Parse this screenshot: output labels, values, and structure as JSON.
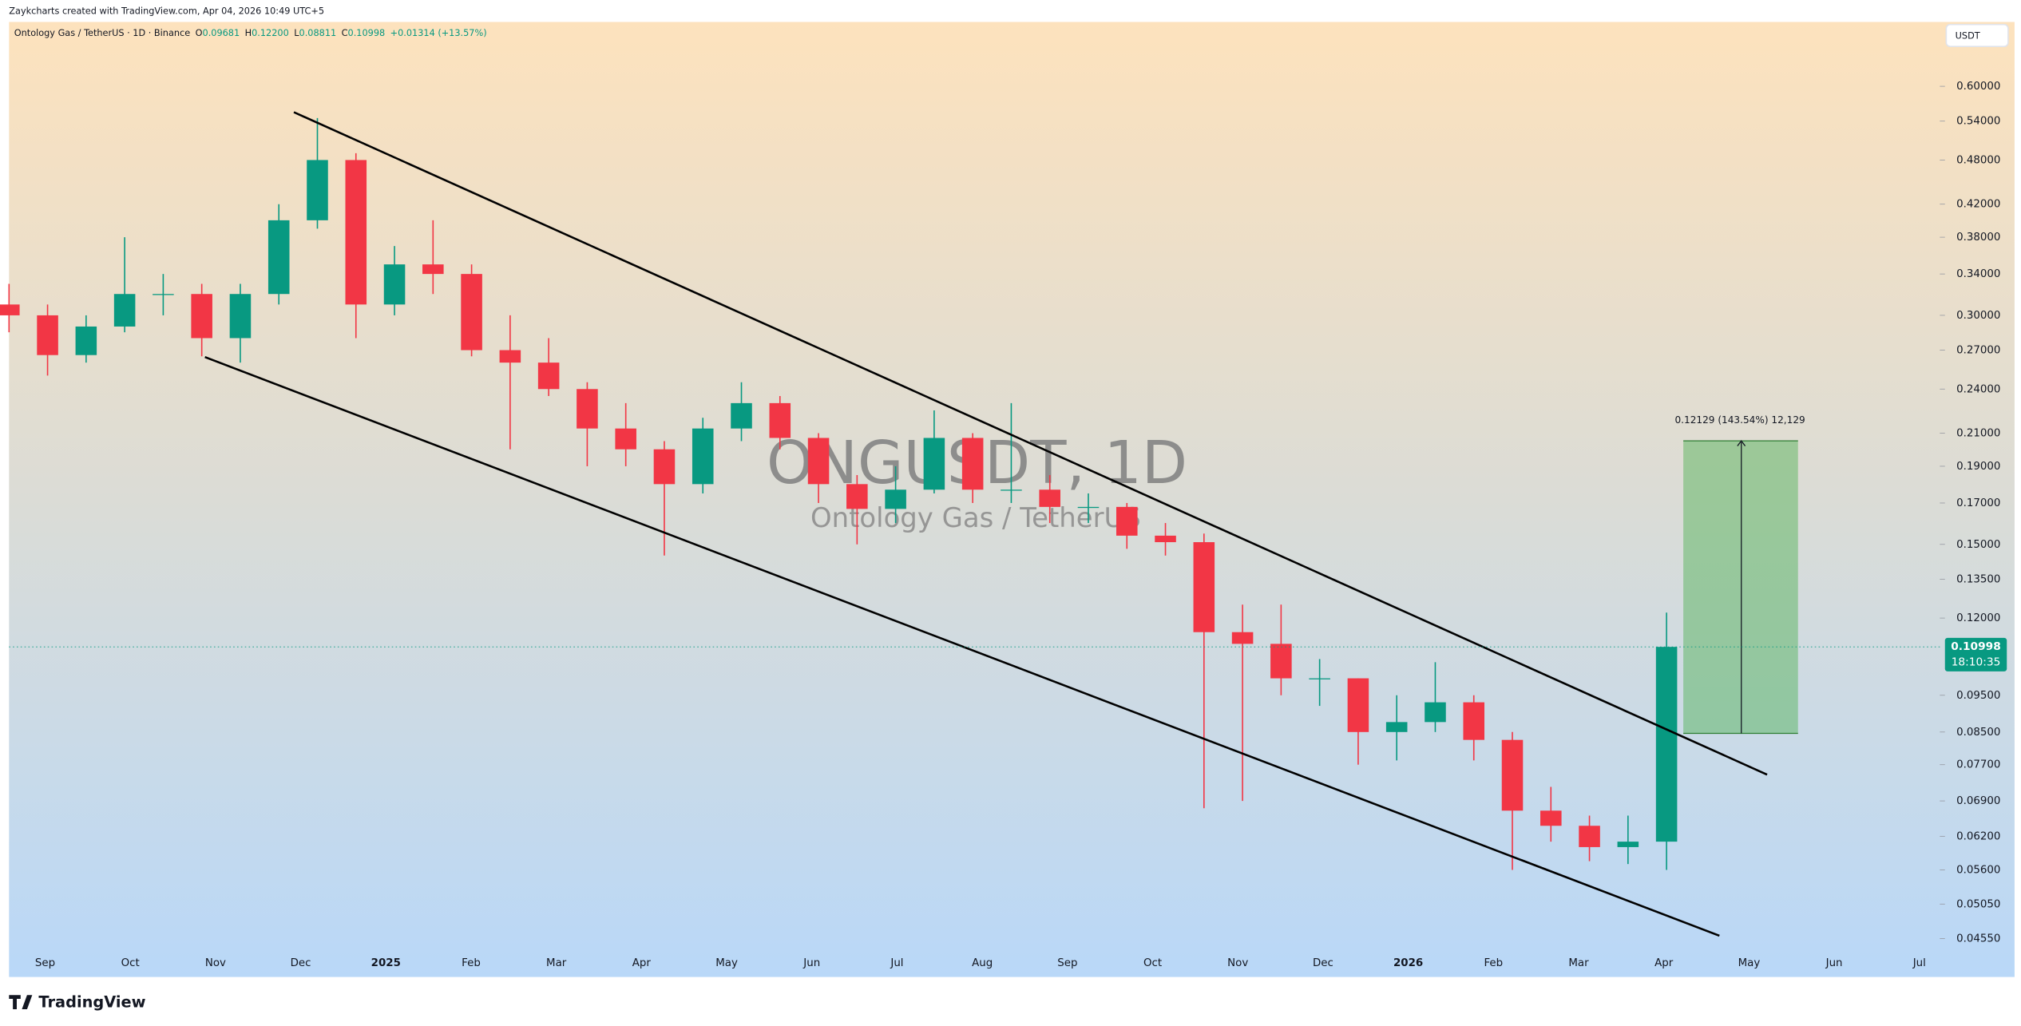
{
  "header": {
    "credit": "Zaykcharts created with TradingView.com, Apr 04, 2026 10:49 UTC+5",
    "symbol": "Ontology Gas / TetherUS · 1D · Binance",
    "ohlc": [
      {
        "key": "O",
        "value": "0.09681"
      },
      {
        "key": "H",
        "value": "0.12200"
      },
      {
        "key": "L",
        "value": "0.08811"
      },
      {
        "key": "C",
        "value": "0.10998"
      }
    ],
    "change": "+0.01314 (+13.57%)"
  },
  "chart_data": {
    "type": "candlestick",
    "currency": "USDT",
    "watermark": {
      "symbol": "ONGUSDT, 1D",
      "name": "Ontology Gas / TetherUS"
    },
    "measure_label": "0.12129 (143.54%) 12,129",
    "last_price_label": "0.10998",
    "countdown": "18:10:35",
    "up_color": "#089981",
    "down_color": "#f23645",
    "log_scale": true,
    "grid": false,
    "ylim": [
      0.0405,
      0.729
    ],
    "yticks": [
      {
        "value": 0.6,
        "label": "0.60000"
      },
      {
        "value": 0.54,
        "label": "0.54000"
      },
      {
        "value": 0.48,
        "label": "0.48000"
      },
      {
        "value": 0.42,
        "label": "0.42000"
      },
      {
        "value": 0.38,
        "label": "0.38000"
      },
      {
        "value": 0.34,
        "label": "0.34000"
      },
      {
        "value": 0.3,
        "label": "0.30000"
      },
      {
        "value": 0.27,
        "label": "0.27000"
      },
      {
        "value": 0.24,
        "label": "0.24000"
      },
      {
        "value": 0.21,
        "label": "0.21000"
      },
      {
        "value": 0.19,
        "label": "0.19000"
      },
      {
        "value": 0.17,
        "label": "0.17000"
      },
      {
        "value": 0.15,
        "label": "0.15000"
      },
      {
        "value": 0.135,
        "label": "0.13500"
      },
      {
        "value": 0.12,
        "label": "0.12000"
      },
      {
        "value": 0.095,
        "label": "0.09500"
      },
      {
        "value": 0.085,
        "label": "0.08500"
      },
      {
        "value": 0.077,
        "label": "0.07700"
      },
      {
        "value": 0.069,
        "label": "0.06900"
      },
      {
        "value": 0.062,
        "label": "0.06200"
      },
      {
        "value": 0.056,
        "label": "0.05600"
      },
      {
        "value": 0.0505,
        "label": "0.05050"
      },
      {
        "value": 0.0455,
        "label": "0.04550"
      }
    ],
    "xticks": [
      "Sep",
      "Oct",
      "Nov",
      "Dec",
      "2025",
      "Feb",
      "Mar",
      "Apr",
      "May",
      "Jun",
      "Jul",
      "Aug",
      "Sep",
      "Oct",
      "Nov",
      "Dec",
      "2026",
      "Feb",
      "Mar",
      "Apr",
      "May",
      "Jun",
      "Jul"
    ],
    "open": [
      0.31,
      0.3,
      0.266,
      0.29,
      0.32,
      0.32,
      0.28,
      0.32,
      0.4,
      0.48,
      0.31,
      0.35,
      0.34,
      0.27,
      0.26,
      0.24,
      0.213,
      0.2,
      0.18,
      0.213,
      0.23,
      0.207,
      0.18,
      0.167,
      0.177,
      0.207,
      0.177,
      0.177,
      0.168,
      0.168,
      0.154,
      0.151,
      0.115,
      0.111,
      0.1,
      0.1,
      0.085,
      0.0876,
      0.093,
      0.083,
      0.067,
      0.064,
      0.06,
      0.061
    ],
    "high": [
      0.33,
      0.31,
      0.3,
      0.38,
      0.34,
      0.33,
      0.33,
      0.42,
      0.545,
      0.49,
      0.37,
      0.4,
      0.35,
      0.3,
      0.28,
      0.245,
      0.23,
      0.205,
      0.22,
      0.245,
      0.235,
      0.21,
      0.185,
      0.19,
      0.225,
      0.21,
      0.23,
      0.185,
      0.175,
      0.17,
      0.16,
      0.155,
      0.125,
      0.125,
      0.106,
      0.1,
      0.095,
      0.105,
      0.095,
      0.085,
      0.072,
      0.066,
      0.066,
      0.122
    ],
    "low": [
      0.285,
      0.25,
      0.26,
      0.285,
      0.3,
      0.265,
      0.26,
      0.31,
      0.39,
      0.28,
      0.3,
      0.32,
      0.265,
      0.2,
      0.235,
      0.19,
      0.19,
      0.145,
      0.175,
      0.205,
      0.2,
      0.17,
      0.15,
      0.16,
      0.175,
      0.17,
      0.17,
      0.16,
      0.16,
      0.148,
      0.145,
      0.0675,
      0.069,
      0.095,
      0.092,
      0.077,
      0.078,
      0.085,
      0.078,
      0.056,
      0.061,
      0.0575,
      0.057,
      0.056
    ],
    "close": [
      0.3,
      0.266,
      0.29,
      0.32,
      0.32,
      0.28,
      0.32,
      0.4,
      0.48,
      0.31,
      0.35,
      0.34,
      0.27,
      0.26,
      0.24,
      0.213,
      0.2,
      0.18,
      0.213,
      0.23,
      0.207,
      0.18,
      0.167,
      0.177,
      0.207,
      0.177,
      0.177,
      0.168,
      0.168,
      0.154,
      0.151,
      0.115,
      0.111,
      0.1,
      0.1,
      0.085,
      0.0876,
      0.093,
      0.083,
      0.067,
      0.064,
      0.06,
      0.061,
      0.10998
    ]
  },
  "footer": {
    "logo": "TradingView"
  }
}
